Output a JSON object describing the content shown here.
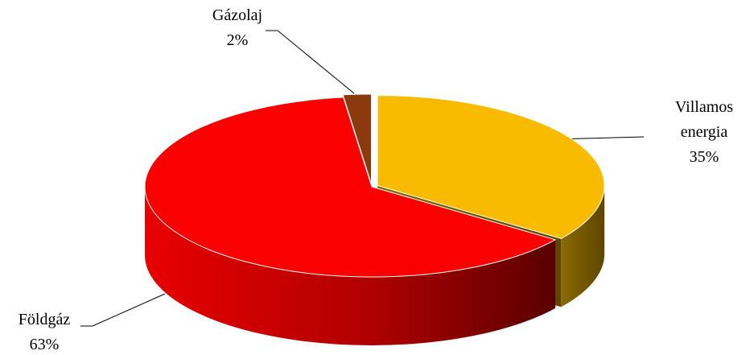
{
  "chart_data": {
    "type": "pie3d",
    "categories": [
      "Villamos energia",
      "Földgáz",
      "Gázolaj"
    ],
    "values": [
      35,
      63,
      2
    ],
    "value_labels": [
      "35%",
      "63%",
      "2%"
    ],
    "colors": [
      "#f9bb00",
      "#fa0000",
      "#8b3a0e"
    ]
  }
}
